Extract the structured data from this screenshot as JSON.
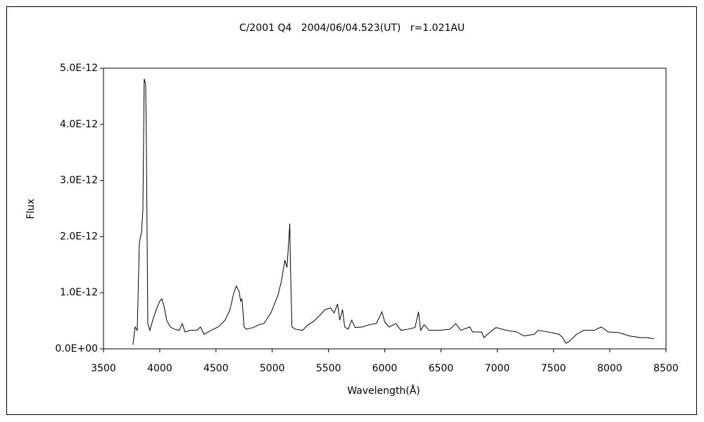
{
  "chart_data": {
    "type": "line",
    "title": "C/2001 Q4   2004/06/04.523(UT)   r=1.021AU",
    "x_label": "Wavelength(Å)",
    "y_label": "Flux",
    "xlim": [
      3500,
      8500
    ],
    "xticks": [
      3500,
      4000,
      4500,
      5000,
      5500,
      6000,
      6500,
      7000,
      7500,
      8000,
      8500
    ],
    "ylim": [
      0,
      5e-12
    ],
    "yticks": [
      {
        "value": 0,
        "label": "0.0E+00"
      },
      {
        "value": 1e-12,
        "label": "1.0E-12"
      },
      {
        "value": 2e-12,
        "label": "2.0E-12"
      },
      {
        "value": 3e-12,
        "label": "3.0E-12"
      },
      {
        "value": 4e-12,
        "label": "4.0E-12"
      },
      {
        "value": 5e-12,
        "label": "5.0E-12"
      }
    ],
    "grid": false,
    "color": "#000000",
    "x": [
      3762,
      3781,
      3800,
      3819,
      3838,
      3850,
      3862,
      3875,
      3881,
      3894,
      3912,
      3938,
      3969,
      4000,
      4019,
      4038,
      4062,
      4094,
      4131,
      4175,
      4200,
      4225,
      4269,
      4331,
      4362,
      4394,
      4456,
      4519,
      4581,
      4625,
      4656,
      4681,
      4706,
      4719,
      4731,
      4750,
      4769,
      4831,
      4881,
      4925,
      4988,
      5050,
      5081,
      5112,
      5131,
      5150,
      5156,
      5162,
      5175,
      5206,
      5269,
      5319,
      5362,
      5425,
      5469,
      5519,
      5550,
      5581,
      5600,
      5625,
      5644,
      5675,
      5706,
      5737,
      5800,
      5862,
      5925,
      5975,
      6000,
      6038,
      6100,
      6144,
      6206,
      6269,
      6300,
      6319,
      6350,
      6394,
      6487,
      6581,
      6631,
      6675,
      6756,
      6781,
      6862,
      6881,
      6956,
      6988,
      7081,
      7175,
      7237,
      7331,
      7362,
      7456,
      7550,
      7581,
      7612,
      7644,
      7706,
      7769,
      7862,
      7925,
      7987,
      8081,
      8175,
      8269,
      8331,
      8394
    ],
    "values": [
      7.5e-14,
      3.9e-13,
      3.3e-13,
      1.89e-12,
      2.08e-12,
      2.46e-12,
      4.81e-12,
      4.71e-12,
      3.71e-12,
      4.5e-13,
      3.3e-13,
      5.1e-13,
      7e-13,
      8.5e-13,
      8.9e-13,
      7.6e-13,
      5.1e-13,
      3.9e-13,
      3.5e-13,
      3.3e-13,
      4.5e-13,
      3e-13,
      3.3e-13,
      3.3e-13,
      3.9e-13,
      2.6e-13,
      3.3e-13,
      3.9e-13,
      5.1e-13,
      7e-13,
      9.8e-13,
      1.12e-12,
      1.02e-12,
      8.5e-13,
      8.9e-13,
      3.9e-13,
      3.5e-13,
      3.8e-13,
      4.3e-13,
      4.5e-13,
      6.4e-13,
      9.5e-13,
      1.2e-12,
      1.58e-12,
      1.45e-12,
      2.02e-12,
      2.23e-12,
      1.45e-12,
      3.9e-13,
      3.5e-13,
      3.3e-13,
      4.3e-13,
      4.8e-13,
      6e-13,
      7e-13,
      7.3e-13,
      6.4e-13,
      8e-13,
      5.1e-13,
      7e-13,
      3.9e-13,
      3.5e-13,
      5.1e-13,
      3.8e-13,
      3.9e-13,
      4.3e-13,
      4.5e-13,
      6.6e-13,
      4.8e-13,
      3.9e-13,
      4.5e-13,
      3.3e-13,
      3.5e-13,
      3.8e-13,
      6.6e-13,
      3.3e-13,
      4.3e-13,
      3.3e-13,
      3.3e-13,
      3.5e-13,
      4.5e-13,
      3.3e-13,
      3.9e-13,
      3e-13,
      3e-13,
      2e-13,
      3.3e-13,
      3.8e-13,
      3.3e-13,
      3e-13,
      2.3e-13,
      2.6e-13,
      3.3e-13,
      3e-13,
      2.6e-13,
      2e-13,
      1e-13,
      1.4e-13,
      2.6e-13,
      3.3e-13,
      3.3e-13,
      3.9e-13,
      3e-13,
      2.9e-13,
      2.3e-13,
      2e-13,
      2e-13,
      1.8e-13
    ]
  }
}
